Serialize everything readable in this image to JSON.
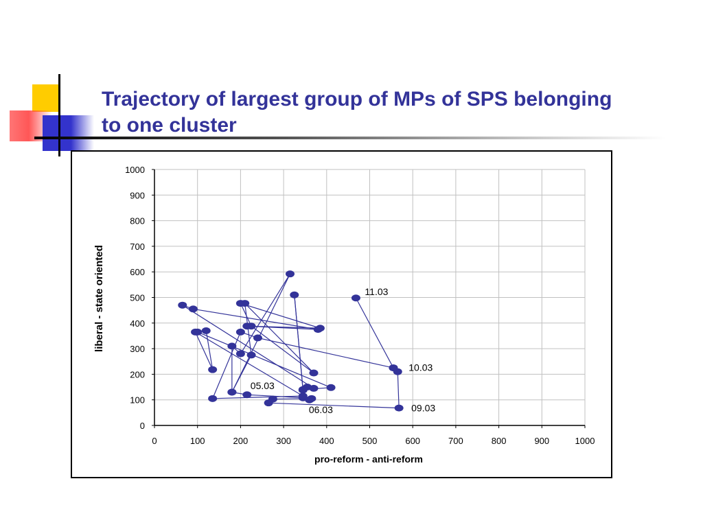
{
  "slide": {
    "title": "Trajectory of largest group of MPs of SPS belonging to one cluster"
  },
  "colors": {
    "title": "#333399",
    "series": "#333399",
    "grid": "#c0c0c0"
  },
  "chart_data": {
    "type": "scatter",
    "title": "",
    "xlabel": "pro-reform - anti-reform",
    "ylabel": "liberal - state oriented",
    "xlim": [
      0,
      1000
    ],
    "ylim": [
      0,
      1000
    ],
    "xticks": [
      0,
      100,
      200,
      300,
      400,
      500,
      600,
      700,
      800,
      900,
      1000
    ],
    "yticks": [
      0,
      100,
      200,
      300,
      400,
      500,
      600,
      700,
      800,
      900,
      1000
    ],
    "grid": true,
    "legend": "none",
    "series": [
      {
        "points": [
          [
            468,
            498
          ],
          [
            555,
            225
          ],
          [
            565,
            210
          ],
          [
            568,
            68
          ],
          [
            265,
            88
          ],
          [
            275,
            103
          ],
          [
            365,
            105
          ],
          [
            360,
            100
          ],
          [
            345,
            108
          ],
          [
            215,
            120
          ],
          [
            180,
            130
          ],
          [
            180,
            310
          ],
          [
            200,
            280
          ],
          [
            315,
            592
          ],
          [
            180,
            130
          ],
          [
            225,
            275
          ],
          [
            210,
            477
          ],
          [
            370,
            205
          ],
          [
            225,
            388
          ],
          [
            200,
            477
          ],
          [
            385,
            380
          ],
          [
            215,
            388
          ],
          [
            380,
            375
          ],
          [
            90,
            455
          ],
          [
            65,
            470
          ],
          [
            370,
            145
          ],
          [
            355,
            150
          ],
          [
            345,
            138
          ],
          [
            325,
            510
          ],
          [
            345,
            140
          ],
          [
            410,
            148
          ],
          [
            100,
            365
          ],
          [
            120,
            370
          ],
          [
            135,
            218
          ],
          [
            95,
            365
          ],
          [
            345,
            115
          ],
          [
            135,
            105
          ],
          [
            200,
            365
          ],
          [
            240,
            342
          ],
          [
            555,
            225
          ]
        ]
      }
    ],
    "annotations": [
      {
        "text": "11.03",
        "x": 468,
        "y": 498
      },
      {
        "text": "10.03",
        "x": 565,
        "y": 210
      },
      {
        "text": "09.03",
        "x": 568,
        "y": 68
      },
      {
        "text": "05.03",
        "x": 215,
        "y": 120
      },
      {
        "text": "06.03",
        "x": 365,
        "y": 105
      }
    ]
  }
}
